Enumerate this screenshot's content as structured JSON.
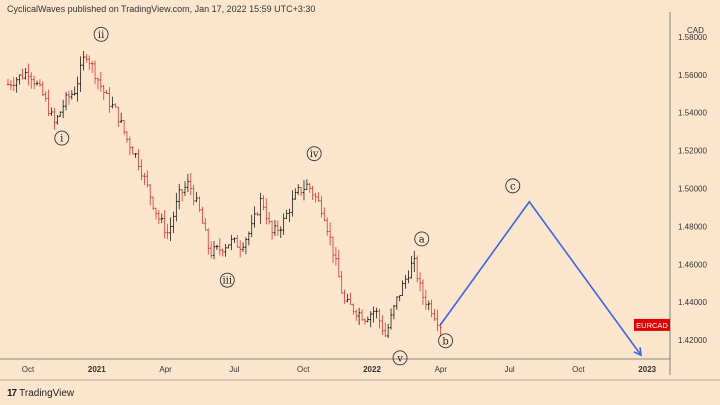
{
  "header": {
    "text": "CyclicalWaves published on TradingView.com, Jan 17, 2022 15:59 UTC+3:30"
  },
  "footer": {
    "logo": "17",
    "brand": "TradingView"
  },
  "colors": {
    "background": "#fbe6cd",
    "candle_up": "#000000",
    "candle_down": "#d62020",
    "projection": "#3c64e6",
    "symbol_badge": "#e00000"
  },
  "chart_data": {
    "type": "candlestick",
    "symbol": "EURCAD",
    "currency_label": "CAD",
    "y_axis": {
      "ticks": [
        "1.58000",
        "1.56000",
        "1.54000",
        "1.52000",
        "1.50000",
        "1.48000",
        "1.46000",
        "1.44000",
        "1.42000"
      ],
      "range": [
        1.41,
        1.59
      ]
    },
    "x_axis": {
      "ticks": [
        "Oct",
        "2021",
        "Apr",
        "Jul",
        "Oct",
        "2022",
        "Apr",
        "Jul",
        "Oct",
        "2023"
      ],
      "bold_ticks": [
        "2021",
        "2022",
        "2023"
      ]
    },
    "price_path": [
      {
        "t": 0.0,
        "p": 1.555
      },
      {
        "t": 2.0,
        "p": 1.562
      },
      {
        "t": 3.5,
        "p": 1.548
      },
      {
        "t": 4.5,
        "p": 1.534
      },
      {
        "t": 5.5,
        "p": 1.546
      },
      {
        "t": 6.5,
        "p": 1.552
      },
      {
        "t": 7.5,
        "p": 1.572
      },
      {
        "t": 8.5,
        "p": 1.56
      },
      {
        "t": 9.5,
        "p": 1.548
      },
      {
        "t": 10.5,
        "p": 1.54
      },
      {
        "t": 11.5,
        "p": 1.526
      },
      {
        "t": 12.5,
        "p": 1.516
      },
      {
        "t": 13.5,
        "p": 1.5
      },
      {
        "t": 14.5,
        "p": 1.485
      },
      {
        "t": 15.5,
        "p": 1.476
      },
      {
        "t": 16.5,
        "p": 1.496
      },
      {
        "t": 17.5,
        "p": 1.503
      },
      {
        "t": 18.5,
        "p": 1.488
      },
      {
        "t": 19.5,
        "p": 1.466
      },
      {
        "t": 20.5,
        "p": 1.468
      },
      {
        "t": 21.5,
        "p": 1.472
      },
      {
        "t": 22.5,
        "p": 1.47
      },
      {
        "t": 23.5,
        "p": 1.478
      },
      {
        "t": 24.5,
        "p": 1.495
      },
      {
        "t": 25.5,
        "p": 1.476
      },
      {
        "t": 26.5,
        "p": 1.481
      },
      {
        "t": 27.5,
        "p": 1.493
      },
      {
        "t": 28.0,
        "p": 1.498
      },
      {
        "t": 29.0,
        "p": 1.502
      },
      {
        "t": 30.5,
        "p": 1.488
      },
      {
        "t": 31.5,
        "p": 1.465
      },
      {
        "t": 32.5,
        "p": 1.44
      },
      {
        "t": 33.5,
        "p": 1.436
      },
      {
        "t": 34.5,
        "p": 1.432
      },
      {
        "t": 35.5,
        "p": 1.436
      },
      {
        "t": 36.5,
        "p": 1.422
      },
      {
        "t": 37.5,
        "p": 1.44
      },
      {
        "t": 38.5,
        "p": 1.453
      },
      {
        "t": 39.2,
        "p": 1.462
      },
      {
        "t": 40.0,
        "p": 1.444
      },
      {
        "t": 41.0,
        "p": 1.436
      },
      {
        "t": 41.8,
        "p": 1.428
      }
    ],
    "candle_count": 150,
    "projection": [
      {
        "t": 41.8,
        "p": 1.428
      },
      {
        "t": 50.4,
        "p": 1.493
      },
      {
        "t": 61.2,
        "p": 1.412
      }
    ],
    "wave_labels": [
      {
        "text": "i",
        "t": 5.2,
        "p": 1.534,
        "pos": "below"
      },
      {
        "text": "ii",
        "t": 9.0,
        "p": 1.574,
        "pos": "above"
      },
      {
        "text": "iii",
        "t": 21.2,
        "p": 1.459,
        "pos": "below"
      },
      {
        "text": "iv",
        "t": 29.6,
        "p": 1.511,
        "pos": "above"
      },
      {
        "text": "v",
        "t": 37.9,
        "p": 1.418,
        "pos": "below"
      },
      {
        "text": "a",
        "t": 40.0,
        "p": 1.466,
        "pos": "above"
      },
      {
        "text": "b",
        "t": 42.3,
        "p": 1.427,
        "pos": "below"
      },
      {
        "text": "c",
        "t": 48.8,
        "p": 1.494,
        "pos": "above"
      }
    ]
  }
}
